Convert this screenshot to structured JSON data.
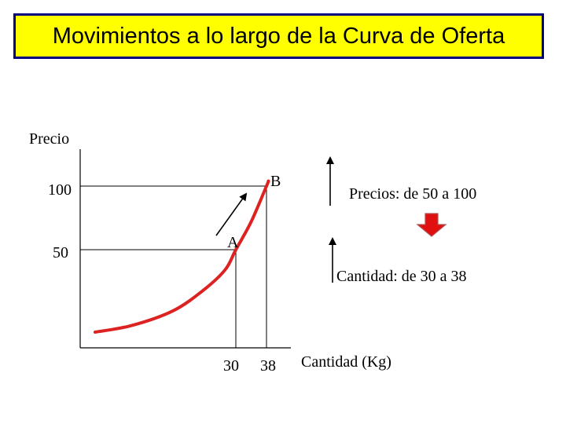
{
  "title": "Movimientos a lo largo de la Curva de Oferta",
  "chart_data": {
    "type": "line",
    "ylabel": "Precio",
    "xlabel": "Cantidad (Kg)",
    "y_ticks": [
      "100",
      "50"
    ],
    "x_ticks": [
      "30",
      "38"
    ],
    "series": [
      {
        "values": [
          {
            "x": 3,
            "y": 0
          },
          {
            "x": 10,
            "y": 4
          },
          {
            "x": 18,
            "y": 13
          },
          {
            "x": 24,
            "y": 26
          },
          {
            "x": 28,
            "y": 38
          },
          {
            "x": 30,
            "y": 50
          },
          {
            "x": 34,
            "y": 72
          },
          {
            "x": 38,
            "y": 100
          },
          {
            "x": 38.5,
            "y": 104
          }
        ]
      }
    ],
    "points": [
      {
        "label": "A",
        "x": 30,
        "y": 50
      },
      {
        "label": "B",
        "x": 38,
        "y": 100
      }
    ],
    "annotations": [
      {
        "text": "Precios: de 50 a 100",
        "direction": "up"
      },
      {
        "text": "Cantidad: de 30 a 38",
        "direction": "up"
      }
    ],
    "colors": {
      "curve": "#dd2222",
      "arrow_fill": "#e01010",
      "arrow_stroke": "#b05050",
      "title_bg": "#ffff00",
      "title_border": "#000080"
    }
  }
}
